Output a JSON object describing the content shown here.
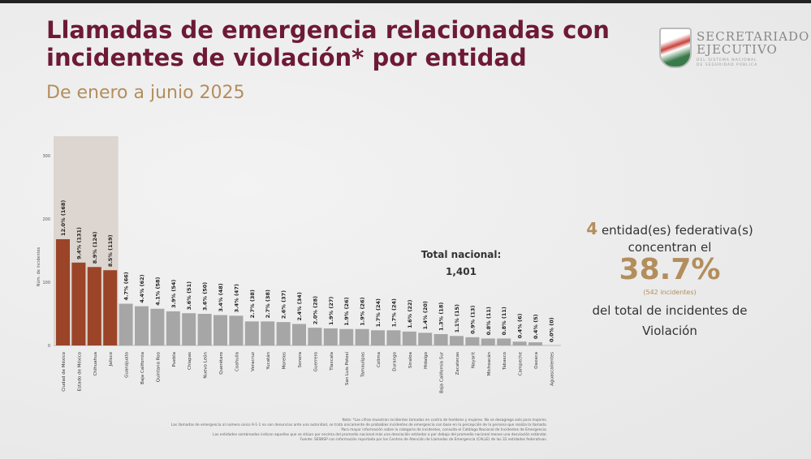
{
  "header": {
    "title": "Llamadas de emergencia relacionadas  con incidentes de violación* por entidad",
    "subtitle": "De enero a junio 2025"
  },
  "logo": {
    "line1": "SECRETARIADO",
    "line2": "EJECUTIVO",
    "line3": "DEL SISTEMA NACIONAL",
    "line4": "DE SEGURIDAD PÚBLICA"
  },
  "colors": {
    "title": "#6d1a36",
    "accent": "#b38e5d",
    "highlight_bar": "#9b4428",
    "normal_bar": "#a6a6a6",
    "highlight_band": "#ddd5cf"
  },
  "total": {
    "label": "Total nacional:",
    "value": "1,401"
  },
  "panel": {
    "count": "4",
    "line1": " entidad(es)  federativa(s)",
    "line2": "concentran el",
    "percent": "38.7%",
    "incidents": "(542  incidentes)",
    "line3": "del  total   de incidentes  de",
    "line4": "Violación"
  },
  "notes": [
    "Nota: *Las cifras muestran incidentes tomados en contra de hombres y mujeres. No se desagrega solo para mujeres.",
    "Las llamadas de emergencia al número único 9-1-1 no son denuncias ante una autoridad, se trata únicamente de probables incidentes de emergencia con base en la percepción de la persona que realiza la llamada.",
    "Para mayor información sobre la categoría de incidentes, consulta el Catálogo Nacional de Incidentes de Emergencia.",
    "Las entidades sombreadas indican aquellas que se sitúan por encima del promedio nacional más una desviación estándar o por debajo del promedio nacional menos una desviación estándar.",
    "Fuente: SESNSP con información reportada por los Centros de Atención de Llamadas de Emergencia (CALLE) de las 32 entidades federativas."
  ],
  "chart_data": {
    "type": "bar",
    "title": "Llamadas de emergencia relacionadas con incidentes de violación* por entidad",
    "xlabel": "",
    "ylabel": "Núm. de incidentes",
    "ylim": [
      0,
      300
    ],
    "yticks": [
      0,
      100,
      200,
      300
    ],
    "grid": false,
    "highlighted_count": 4,
    "categories": [
      "Ciudad de México",
      "Estado de México",
      "Chihuahua",
      "Jalisco",
      "Guanajuato",
      "Baja California",
      "Quintana Roo",
      "Puebla",
      "Chiapas",
      "Nuevo León",
      "Querétaro",
      "Coahuila",
      "Veracruz",
      "Yucatán",
      "Morelos",
      "Sonora",
      "Guerrero",
      "Tlaxcala",
      "San Luis Potosí",
      "Tamaulipas",
      "Colima",
      "Durango",
      "Sinaloa",
      "Hidalgo",
      "Baja California Sur",
      "Zacatecas",
      "Nayarit",
      "Michoacán",
      "Tabasco",
      "Campeche",
      "Oaxaca",
      "Aguascalientes"
    ],
    "values": [
      168,
      131,
      124,
      119,
      66,
      62,
      58,
      54,
      51,
      50,
      48,
      47,
      38,
      38,
      37,
      34,
      28,
      27,
      26,
      26,
      24,
      24,
      22,
      20,
      18,
      15,
      13,
      11,
      11,
      6,
      5,
      0
    ],
    "labels": [
      "12.0% (168)",
      "9.4% (131)",
      "8.9% (124)",
      "8.5% (119)",
      "4.7% (66)",
      "4.4% (62)",
      "4.1% (58)",
      "3.9% (54)",
      "3.6% (51)",
      "3.6% (50)",
      "3.4% (48)",
      "3.4% (47)",
      "2.7% (38)",
      "2.7% (38)",
      "2.6% (37)",
      "2.4% (34)",
      "2.0% (28)",
      "1.9% (27)",
      "1.9% (26)",
      "1.9% (26)",
      "1.7% (24)",
      "1.7% (24)",
      "1.6% (22)",
      "1.4% (20)",
      "1.3% (18)",
      "1.1% (15)",
      "0.9% (13)",
      "0.8% (11)",
      "0.8% (11)",
      "0.4% (6)",
      "0.4% (5)",
      "0.0% (0)"
    ]
  }
}
